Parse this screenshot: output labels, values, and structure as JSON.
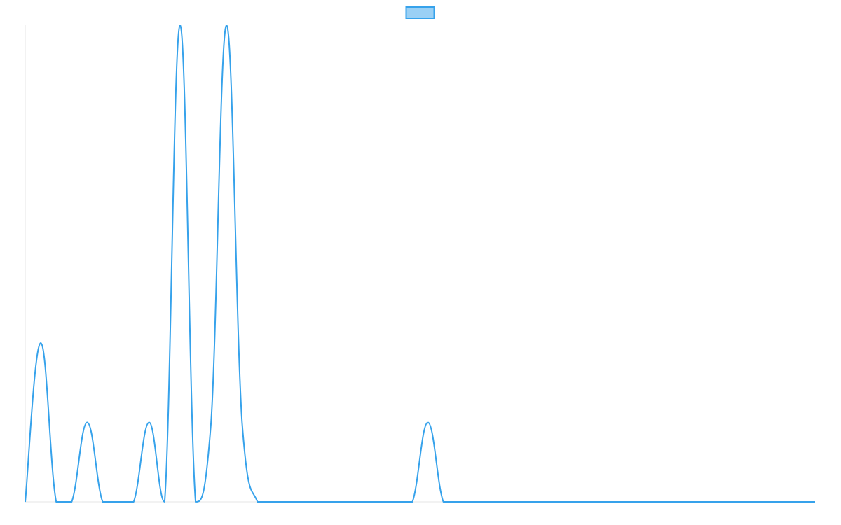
{
  "chart_data": {
    "type": "line",
    "title": "",
    "xlabel": "",
    "ylabel": "",
    "grid": false,
    "legend": {
      "position": "top-center",
      "entries": [
        {
          "name": "",
          "color": "#36a2eb",
          "fill": "#9ad0f5"
        }
      ]
    },
    "x": [
      0,
      1,
      2,
      3,
      4,
      5,
      6,
      7,
      8,
      9,
      10,
      11,
      12,
      13,
      14,
      15,
      16,
      17,
      18,
      19,
      20,
      21,
      22,
      23,
      24,
      25,
      26,
      27,
      28,
      29,
      30,
      31,
      32,
      33,
      34,
      35,
      36,
      37,
      38,
      39,
      40,
      41,
      42,
      43,
      44,
      45,
      46,
      47,
      48,
      49,
      50,
      51
    ],
    "xlim": [
      0,
      51
    ],
    "ylim": [
      0,
      6
    ],
    "series": [
      {
        "name": "",
        "color": "#36a2eb",
        "values": [
          0,
          2,
          0,
          0,
          1,
          0,
          0,
          0,
          1,
          0,
          6,
          0,
          1,
          6,
          1,
          0,
          0,
          0,
          0,
          0,
          0,
          0,
          0,
          0,
          0,
          0,
          1,
          0,
          0,
          0,
          0,
          0,
          0,
          0,
          0,
          0,
          0,
          0,
          0,
          0,
          0,
          0,
          0,
          0,
          0,
          0,
          0,
          0,
          0,
          0,
          0,
          0
        ]
      }
    ]
  }
}
